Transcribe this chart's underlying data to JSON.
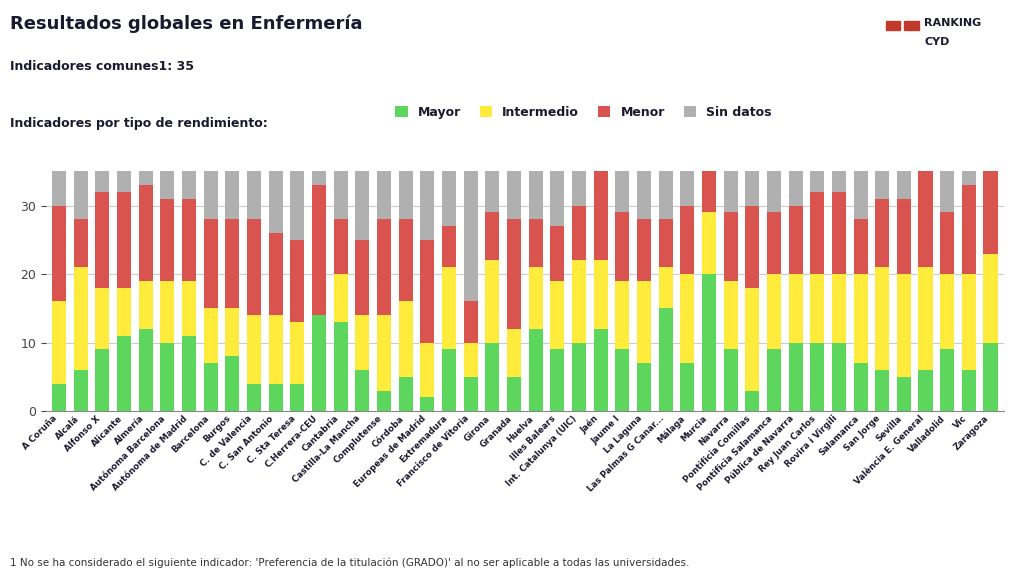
{
  "title": "Resultados globales en Enfermería",
  "subtitle": "Indicadores comunes1: 35",
  "footnote": "1 No se ha considerado el siguiente indicador: 'Preferencia de la titulación (GRADO)' al no ser aplicable a todas las universidades.",
  "legend_labels": [
    "Mayor",
    "Intermedio",
    "Menor",
    "Sin datos"
  ],
  "color_mayor": "#5cd65c",
  "color_intermedio": "#ffeb3b",
  "color_menor": "#d9534f",
  "color_sin_datos": "#b0b0b0",
  "universities": [
    "A Coruña",
    "Alcalá",
    "Alfonso X",
    "Alicante",
    "Almería",
    "Autónoma Barcelona",
    "Autónoma de Madrid",
    "Barcelona",
    "Burgos",
    "C. de Valencia",
    "C. San Antonio",
    "C. Sta Teresa",
    "C.Herrera-CEU",
    "Cantabria",
    "Castilla-La Mancha",
    "Complutense",
    "Córdoba",
    "Europeas de Madrid",
    "Extremadura",
    "Francisco de Vitoria",
    "Girona",
    "Granada",
    "Huelva",
    "Illes Balears",
    "Int. Catalunya (UIC)",
    "Jaén",
    "Jaume I",
    "La Laguna",
    "Las Palmas G Canar...",
    "Málaga",
    "Murcia",
    "Navarra",
    "Pontificia Comillas",
    "Pontificia Salamanca",
    "Pública de Navarra",
    "Rey Juan Carlos",
    "Rovira i Virgili",
    "Salamanca",
    "San Jorge",
    "Sevilla",
    "València E. General",
    "Valladolid",
    "Vic",
    "Zaragoza"
  ],
  "mayor": [
    4,
    6,
    9,
    11,
    12,
    10,
    11,
    7,
    8,
    4,
    4,
    4,
    14,
    13,
    6,
    3,
    5,
    2,
    9,
    5,
    10,
    5,
    12,
    9,
    10,
    12,
    9,
    7,
    15,
    7,
    20,
    9,
    3,
    9,
    10,
    10,
    10,
    7,
    6,
    5,
    6,
    9,
    6,
    10
  ],
  "intermedio": [
    12,
    15,
    9,
    7,
    7,
    9,
    8,
    8,
    7,
    10,
    10,
    9,
    0,
    7,
    8,
    11,
    11,
    8,
    12,
    5,
    12,
    7,
    9,
    10,
    12,
    10,
    10,
    12,
    6,
    13,
    9,
    10,
    15,
    11,
    10,
    10,
    10,
    13,
    15,
    15,
    15,
    11,
    14,
    13
  ],
  "menor": [
    14,
    7,
    14,
    14,
    14,
    12,
    12,
    13,
    13,
    14,
    12,
    12,
    19,
    8,
    11,
    14,
    12,
    15,
    6,
    6,
    7,
    16,
    7,
    8,
    8,
    13,
    10,
    9,
    7,
    10,
    6,
    10,
    12,
    9,
    10,
    12,
    12,
    8,
    10,
    11,
    14,
    9,
    13,
    12
  ],
  "sin_datos": [
    5,
    7,
    3,
    3,
    2,
    4,
    4,
    7,
    7,
    7,
    9,
    10,
    2,
    7,
    10,
    7,
    7,
    10,
    8,
    19,
    6,
    7,
    7,
    8,
    5,
    0,
    6,
    7,
    7,
    5,
    0,
    6,
    5,
    6,
    5,
    3,
    3,
    7,
    4,
    4,
    0,
    6,
    2,
    0
  ],
  "ylim_max": 35,
  "background_color": "#ffffff"
}
